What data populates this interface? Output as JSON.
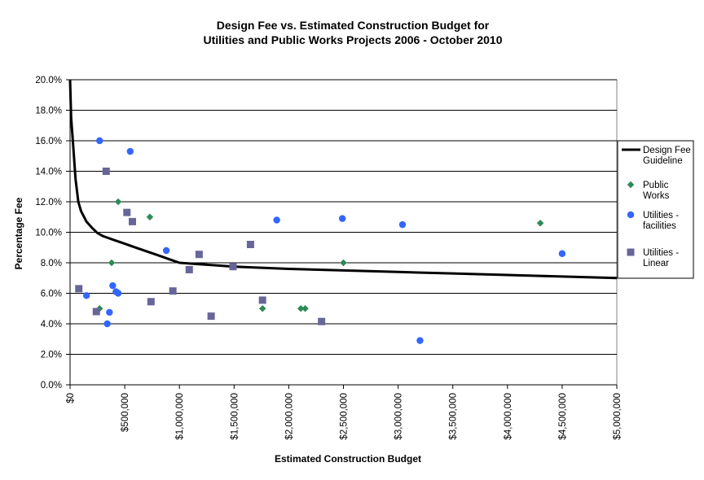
{
  "chart_data": {
    "type": "scatter",
    "title": [
      "Design Fee vs. Estimated Construction Budget for",
      "Utilities and Public Works Projects 2006 - October 2010"
    ],
    "xlabel": "Estimated Construction Budget",
    "ylabel": "Percentage Fee",
    "xlim": [
      0,
      5000000
    ],
    "ylim": [
      0,
      20
    ],
    "x_ticks": [
      0,
      500000,
      1000000,
      1500000,
      2000000,
      2500000,
      3000000,
      3500000,
      4000000,
      4500000,
      5000000
    ],
    "x_tick_labels": [
      "$0",
      "$500,000",
      "$1,000,000",
      "$1,500,000",
      "$2,000,000",
      "$2,500,000",
      "$3,000,000",
      "$3,500,000",
      "$4,000,000",
      "$4,500,000",
      "$5,000,000"
    ],
    "y_ticks": [
      0,
      2,
      4,
      6,
      8,
      10,
      12,
      14,
      16,
      18,
      20
    ],
    "y_tick_labels": [
      "0.0%",
      "2.0%",
      "4.0%",
      "6.0%",
      "8.0%",
      "10.0%",
      "12.0%",
      "14.0%",
      "16.0%",
      "18.0%",
      "20.0%"
    ],
    "grid": "horizontal",
    "legend_position": "right",
    "series": [
      {
        "name": "Design Fee Guideline",
        "kind": "line",
        "color": "#000000",
        "points": [
          [
            0,
            20
          ],
          [
            10000,
            17.5
          ],
          [
            25000,
            16
          ],
          [
            50000,
            13.5
          ],
          [
            75000,
            12
          ],
          [
            100000,
            11.4
          ],
          [
            150000,
            10.7
          ],
          [
            200000,
            10.3
          ],
          [
            250000,
            9.95
          ],
          [
            300000,
            9.75
          ],
          [
            400000,
            9.5
          ],
          [
            500000,
            9.25
          ],
          [
            600000,
            9.0
          ],
          [
            700000,
            8.75
          ],
          [
            800000,
            8.5
          ],
          [
            900000,
            8.25
          ],
          [
            1000000,
            8.0
          ],
          [
            1500000,
            7.75
          ],
          [
            2000000,
            7.6
          ],
          [
            2500000,
            7.5
          ],
          [
            3000000,
            7.4
          ],
          [
            3500000,
            7.3
          ],
          [
            4000000,
            7.2
          ],
          [
            4500000,
            7.1
          ],
          [
            5000000,
            7.0
          ]
        ]
      },
      {
        "name": "Public Works",
        "kind": "diamond",
        "color": "#2E8B57",
        "points": [
          [
            440000,
            12
          ],
          [
            730000,
            11
          ],
          [
            380000,
            8
          ],
          [
            270000,
            5
          ],
          [
            1760000,
            5
          ],
          [
            2110000,
            5
          ],
          [
            2150000,
            5
          ],
          [
            2500000,
            8
          ],
          [
            4300000,
            10.6
          ]
        ]
      },
      {
        "name": "Utilities - facilities",
        "kind": "circle",
        "color": "#3366FF",
        "points": [
          [
            270000,
            16
          ],
          [
            550000,
            15.3
          ],
          [
            880000,
            8.8
          ],
          [
            1890000,
            10.8
          ],
          [
            2490000,
            10.9
          ],
          [
            3040000,
            10.5
          ],
          [
            4500000,
            8.6
          ],
          [
            390000,
            6.5
          ],
          [
            420000,
            6.1
          ],
          [
            440000,
            6.0
          ],
          [
            150000,
            5.85
          ],
          [
            360000,
            4.75
          ],
          [
            340000,
            4.0
          ],
          [
            3200000,
            2.9
          ]
        ]
      },
      {
        "name": "Utilities - Linear",
        "kind": "square",
        "color": "#666699",
        "points": [
          [
            330000,
            14
          ],
          [
            520000,
            11.3
          ],
          [
            570000,
            10.7
          ],
          [
            80000,
            6.3
          ],
          [
            240000,
            4.8
          ],
          [
            740000,
            5.45
          ],
          [
            940000,
            6.15
          ],
          [
            1090000,
            7.55
          ],
          [
            1180000,
            8.55
          ],
          [
            1490000,
            7.75
          ],
          [
            1650000,
            9.2
          ],
          [
            1760000,
            5.55
          ],
          [
            1290000,
            4.5
          ],
          [
            2300000,
            4.15
          ]
        ]
      }
    ],
    "legend": [
      {
        "label": [
          "Design Fee",
          "Guideline"
        ]
      },
      {
        "label": [
          "Public",
          "Works"
        ]
      },
      {
        "label": [
          "Utilities -",
          "facilities"
        ]
      },
      {
        "label": [
          "Utilities -",
          "Linear"
        ]
      }
    ]
  }
}
